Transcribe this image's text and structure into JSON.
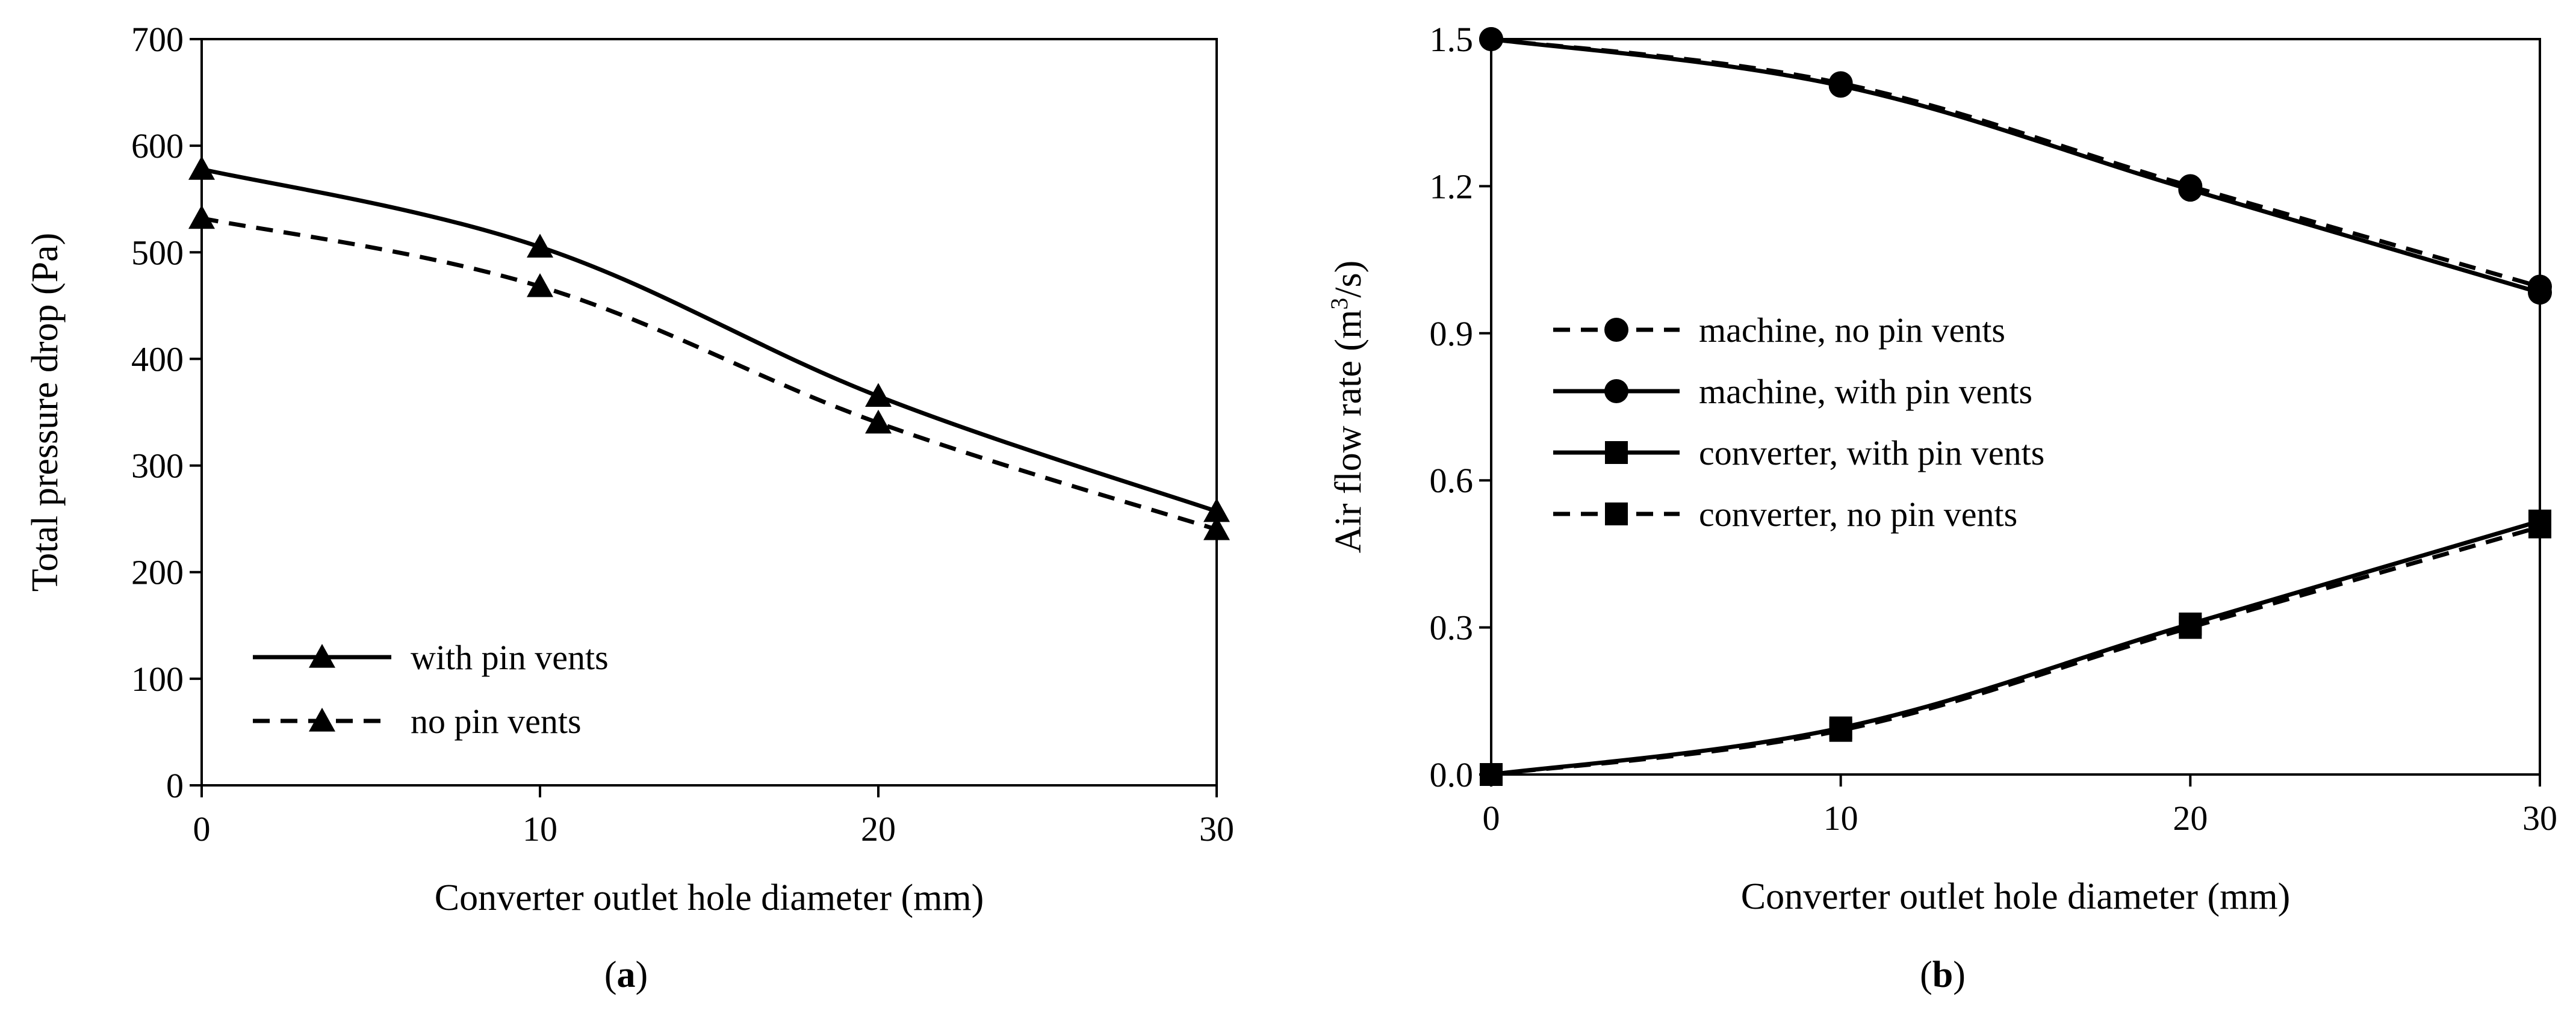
{
  "chart_data": [
    {
      "type": "line",
      "panel_label": "a",
      "xlabel": "Converter outlet hole diameter (mm)",
      "ylabel": "Total pressure drop (Pa)",
      "xlim": [
        0,
        30
      ],
      "ylim": [
        0,
        700
      ],
      "xticks": [
        0,
        10,
        20,
        30
      ],
      "yticks": [
        0,
        100,
        200,
        300,
        400,
        500,
        600,
        700
      ],
      "grid": false,
      "legend_position": "bottom-left",
      "x": [
        0,
        10,
        20,
        30
      ],
      "series": [
        {
          "name": "with pin vents",
          "values": [
            578,
            505,
            365,
            257
          ],
          "line": "solid",
          "marker": "triangle"
        },
        {
          "name": "no pin vents",
          "values": [
            532,
            468,
            340,
            240
          ],
          "line": "dashed",
          "marker": "triangle"
        }
      ]
    },
    {
      "type": "line",
      "panel_label": "b",
      "xlabel": "Converter outlet hole diameter (mm)",
      "ylabel_parts": [
        "Air flow rate (m",
        "3",
        "/s)"
      ],
      "xlim": [
        0,
        30
      ],
      "ylim": [
        0,
        1.5
      ],
      "xticks": [
        0,
        10,
        20,
        30
      ],
      "yticks": [
        "0.0",
        "0.3",
        "0.6",
        "0.9",
        "1.2",
        "1.5"
      ],
      "grid": false,
      "legend_position": "center-left",
      "x": [
        0,
        10,
        20,
        30
      ],
      "series": [
        {
          "name": "machine, no pin vents",
          "values": [
            1.5,
            1.41,
            1.2,
            0.995
          ],
          "line": "dashed",
          "marker": "circle"
        },
        {
          "name": "machine, with pin vents",
          "values": [
            1.5,
            1.405,
            1.193,
            0.983
          ],
          "line": "solid",
          "marker": "circle"
        },
        {
          "name": "converter, with pin vents",
          "values": [
            0.0,
            0.095,
            0.307,
            0.517
          ],
          "line": "solid",
          "marker": "square"
        },
        {
          "name": "converter, no pin vents",
          "values": [
            0.0,
            0.09,
            0.3,
            0.505
          ],
          "line": "dashed",
          "marker": "square"
        }
      ]
    }
  ]
}
